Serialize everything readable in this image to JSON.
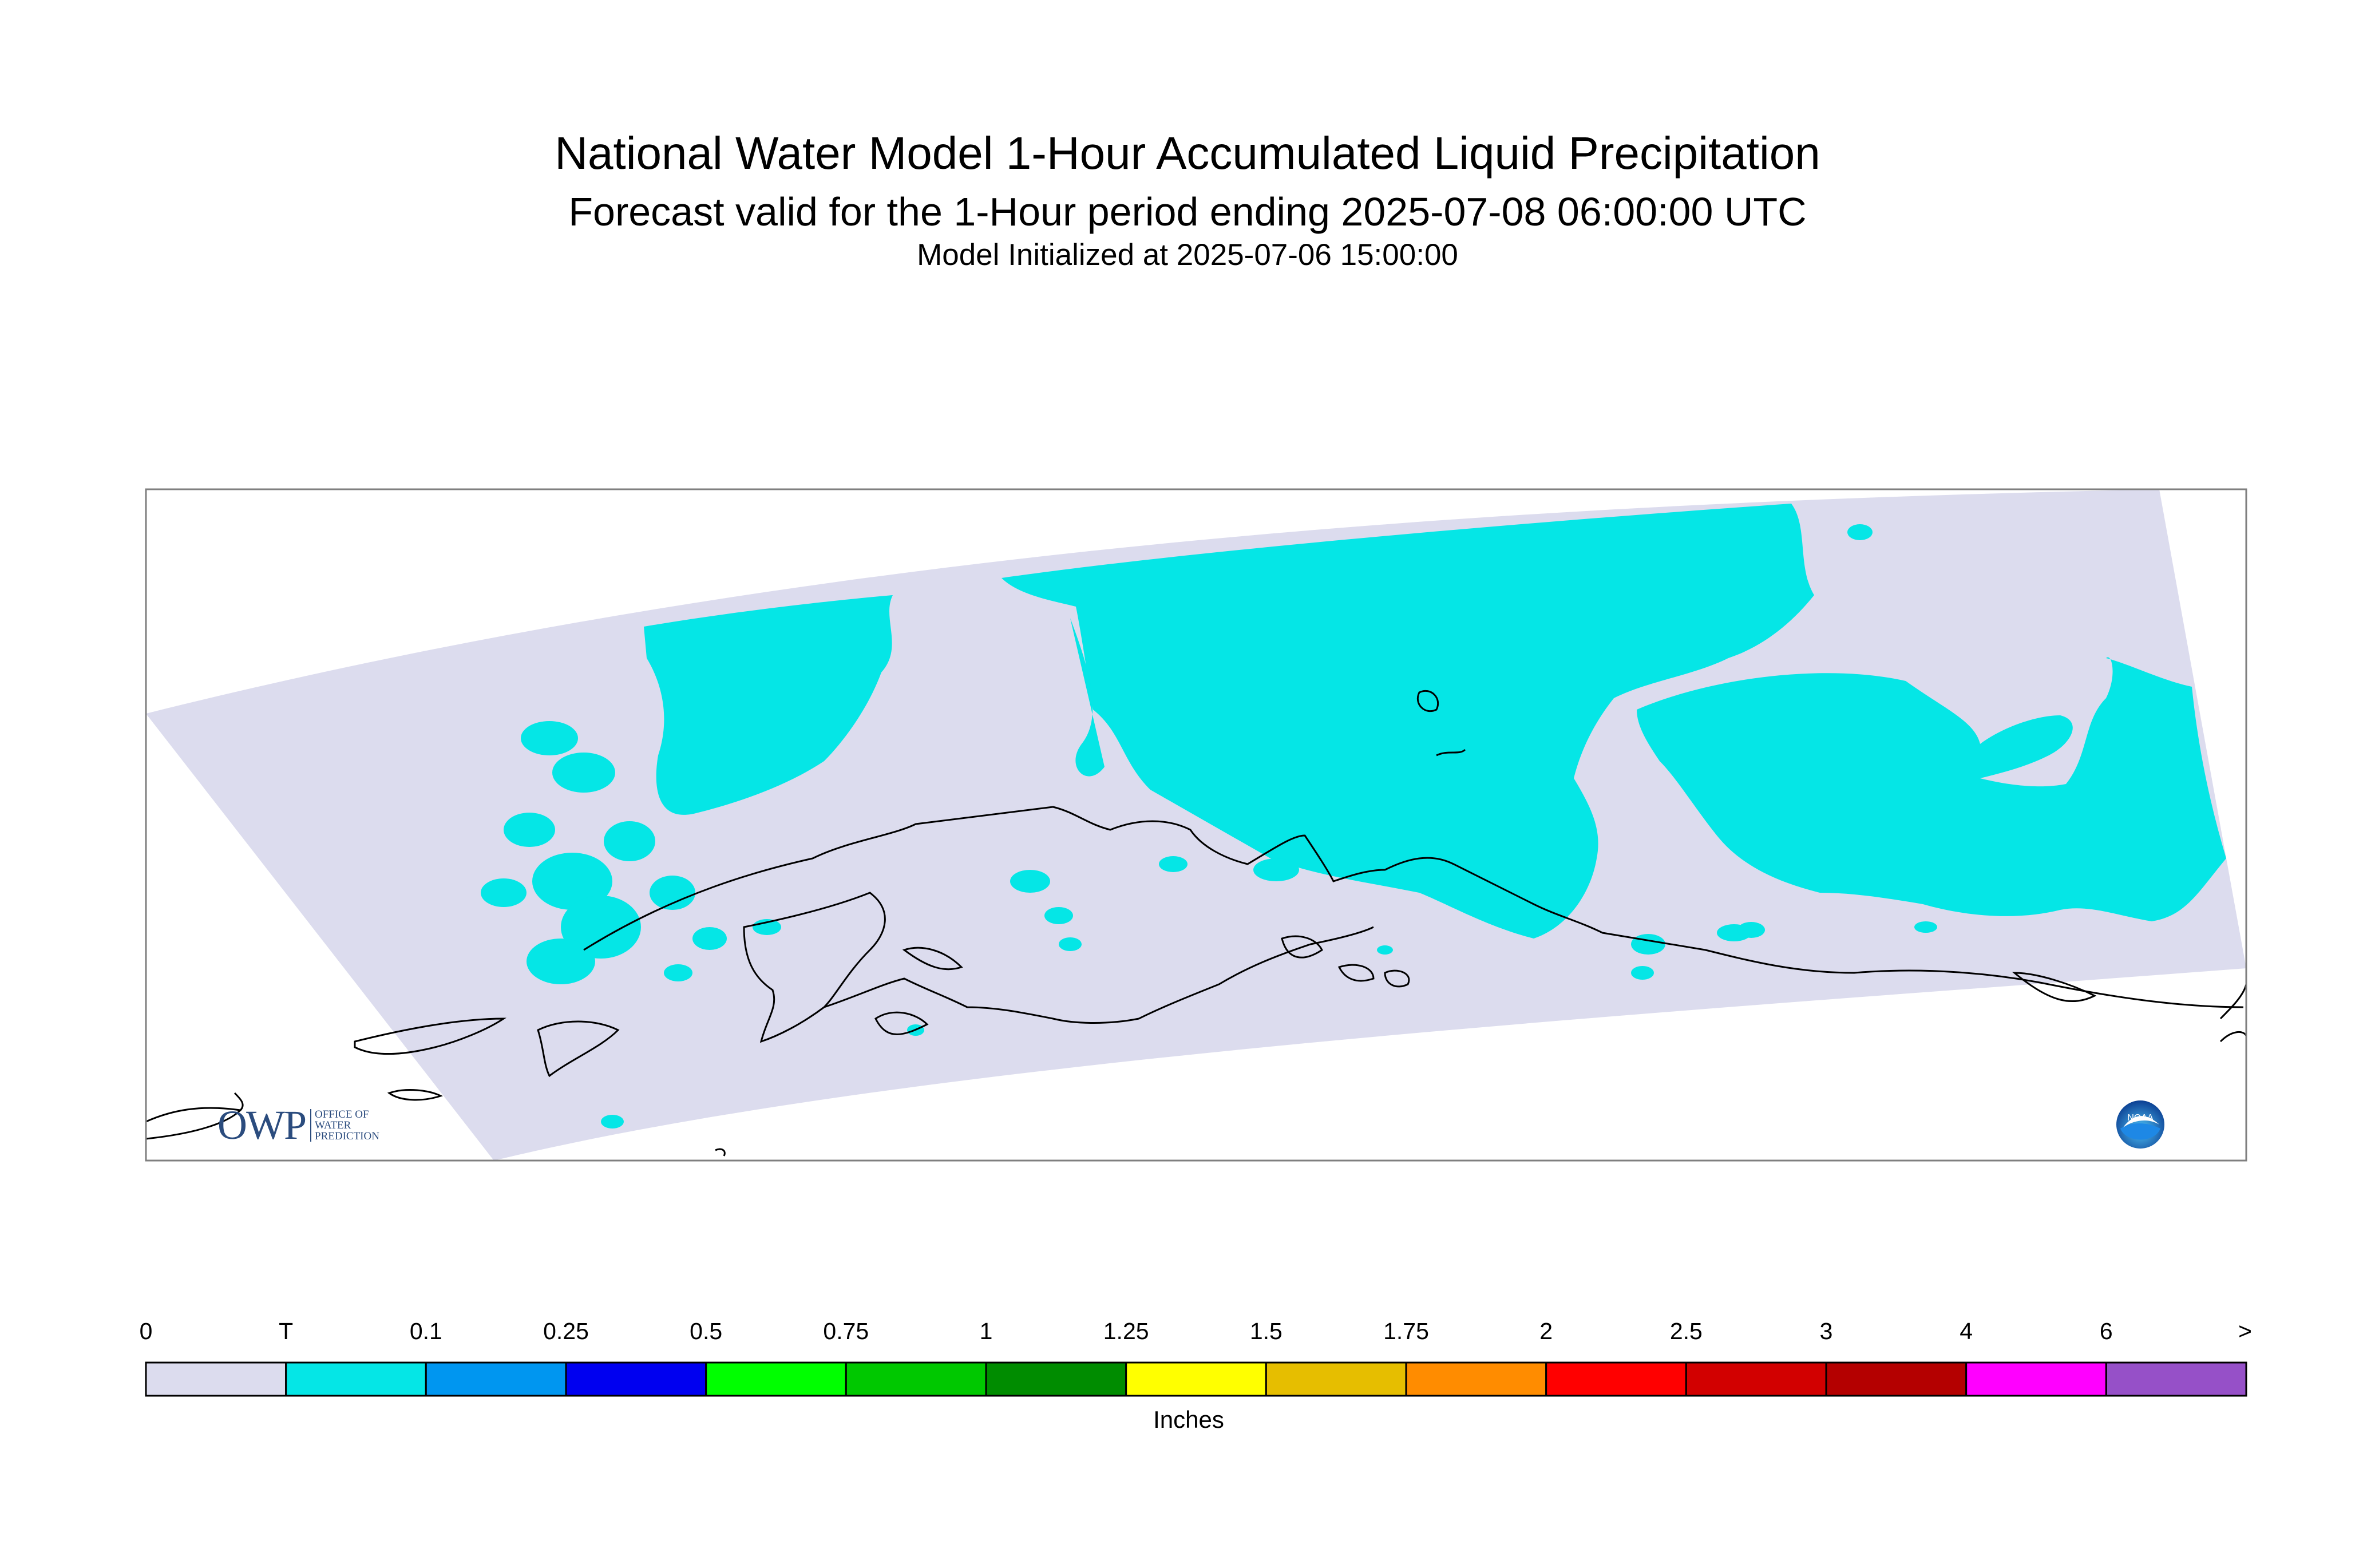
{
  "title": "National Water Model 1-Hour Accumulated Liquid Precipitation",
  "subtitle": "Forecast valid for the 1-Hour period ending 2025-07-08 06:00:00 UTC",
  "init_line": "Model Initialized at 2025-07-06 15:00:00",
  "legend": {
    "unit": "Inches",
    "ticks": [
      "0",
      "T",
      "0.1",
      "0.25",
      "0.5",
      "0.75",
      "1",
      "1.25",
      "1.5",
      "1.75",
      "2",
      "2.5",
      "3",
      "4",
      "6",
      ">"
    ],
    "colors": [
      "#dcdcee",
      "#05e6e6",
      "#0096f0",
      "#0000f0",
      "#00ff00",
      "#00c800",
      "#008c00",
      "#ffff00",
      "#e6be00",
      "#ff8c00",
      "#ff0000",
      "#d20000",
      "#b40000",
      "#ff00ff",
      "#9650c8"
    ]
  },
  "map": {
    "domain_color": "#dcdcee",
    "precip_color": "#05e6e6",
    "coast_color": "#000000",
    "frame_color": "#7f7f7f"
  },
  "logos": {
    "owp_text": "OWP",
    "owp_sub": [
      "Office of",
      "Water",
      "Prediction"
    ],
    "noaa_text": "NOAA"
  }
}
